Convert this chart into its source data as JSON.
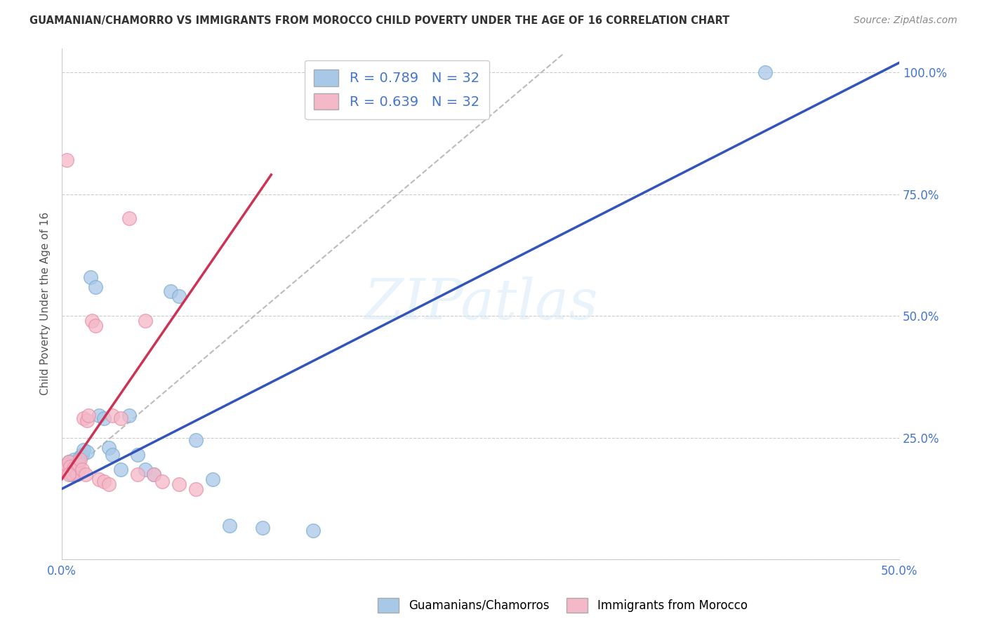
{
  "title": "GUAMANIAN/CHAMORRO VS IMMIGRANTS FROM MOROCCO CHILD POVERTY UNDER THE AGE OF 16 CORRELATION CHART",
  "source": "Source: ZipAtlas.com",
  "ylabel": "Child Poverty Under the Age of 16",
  "watermark": "ZIPatlas",
  "xlim": [
    0,
    0.5
  ],
  "ylim": [
    0,
    1.05
  ],
  "blue_color": "#a8c8e8",
  "blue_edge_color": "#7aafd4",
  "pink_color": "#f4b8c8",
  "pink_edge_color": "#e890a8",
  "blue_line_color": "#3355bb",
  "pink_line_color": "#cc3355",
  "dashed_line_color": "#bbbbbb",
  "r_blue": 0.789,
  "n_blue": 32,
  "r_pink": 0.639,
  "n_pink": 32,
  "legend_label_blue": "Guamanians/Chamorros",
  "legend_label_pink": "Immigrants from Morocco",
  "tick_color": "#4477cc",
  "grid_color": "#cccccc",
  "background_color": "#ffffff",
  "blue_scatter_x": [
    0.003,
    0.004,
    0.005,
    0.006,
    0.007,
    0.008,
    0.009,
    0.01,
    0.011,
    0.012,
    0.013,
    0.015,
    0.017,
    0.02,
    0.022,
    0.025,
    0.028,
    0.03,
    0.035,
    0.04,
    0.045,
    0.05,
    0.055,
    0.065,
    0.07,
    0.08,
    0.09,
    0.1,
    0.12,
    0.15,
    0.42,
    0.006
  ],
  "blue_scatter_y": [
    0.19,
    0.2,
    0.185,
    0.175,
    0.205,
    0.195,
    0.188,
    0.182,
    0.21,
    0.215,
    0.225,
    0.22,
    0.58,
    0.56,
    0.295,
    0.29,
    0.23,
    0.215,
    0.185,
    0.295,
    0.215,
    0.185,
    0.175,
    0.55,
    0.54,
    0.245,
    0.165,
    0.07,
    0.065,
    0.06,
    1.0,
    0.175
  ],
  "pink_scatter_x": [
    0.001,
    0.002,
    0.003,
    0.004,
    0.005,
    0.006,
    0.007,
    0.008,
    0.009,
    0.01,
    0.011,
    0.012,
    0.013,
    0.014,
    0.015,
    0.016,
    0.018,
    0.02,
    0.022,
    0.025,
    0.028,
    0.03,
    0.035,
    0.04,
    0.045,
    0.05,
    0.055,
    0.06,
    0.07,
    0.08,
    0.003,
    0.004
  ],
  "pink_scatter_y": [
    0.18,
    0.185,
    0.195,
    0.2,
    0.19,
    0.178,
    0.188,
    0.182,
    0.175,
    0.195,
    0.205,
    0.185,
    0.29,
    0.175,
    0.285,
    0.295,
    0.49,
    0.48,
    0.165,
    0.16,
    0.155,
    0.295,
    0.29,
    0.7,
    0.175,
    0.49,
    0.175,
    0.16,
    0.155,
    0.145,
    0.82,
    0.175
  ],
  "blue_line_x": [
    0.0,
    0.5
  ],
  "blue_line_y": [
    0.145,
    1.02
  ],
  "pink_line_x": [
    0.0,
    0.125
  ],
  "pink_line_y": [
    0.165,
    0.79
  ],
  "dash_line_x": [
    0.0,
    0.3
  ],
  "dash_line_y": [
    0.165,
    1.04
  ]
}
